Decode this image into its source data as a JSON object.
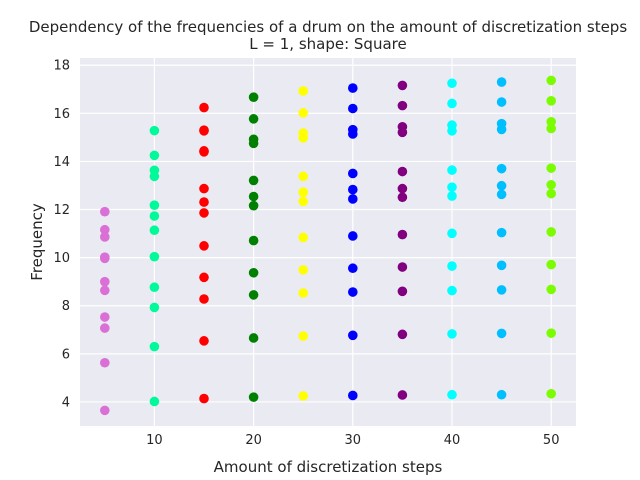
{
  "chart_data": {
    "type": "scatter",
    "title": "Dependency of the frequencies of a drum on the amount of discretization steps",
    "subtitle": "L = 1, shape: Square",
    "xlabel": "Amount of discretization steps",
    "ylabel": "Frequency",
    "xlim": [
      2.5,
      52.5
    ],
    "ylim": [
      3.0,
      18.3
    ],
    "xticks": [
      10,
      20,
      30,
      40,
      50
    ],
    "yticks": [
      4,
      6,
      8,
      10,
      12,
      14,
      16,
      18
    ],
    "grid": true,
    "background": "#eaeaf2",
    "series": [
      {
        "x": 5,
        "color": "#da70d6",
        "values": [
          3.65,
          5.63,
          7.07,
          7.53,
          8.64,
          9.0,
          9.97,
          10.02,
          10.86,
          11.16,
          11.91
        ]
      },
      {
        "x": 10,
        "color": "#00fa9a",
        "values": [
          4.02,
          6.3,
          7.93,
          8.77,
          10.04,
          11.14,
          11.73,
          12.18,
          13.38,
          13.63,
          14.25,
          15.28
        ]
      },
      {
        "x": 15,
        "color": "#ff0000",
        "values": [
          4.14,
          6.54,
          8.28,
          9.18,
          10.49,
          11.86,
          12.31,
          12.87,
          14.4,
          14.44,
          15.27,
          15.3,
          16.24
        ]
      },
      {
        "x": 20,
        "color": "#008000",
        "values": [
          4.2,
          6.66,
          8.45,
          9.37,
          10.71,
          12.16,
          12.54,
          13.21,
          14.75,
          14.92,
          15.77,
          16.67
        ]
      },
      {
        "x": 25,
        "color": "#ffff00",
        "values": [
          4.25,
          6.74,
          8.53,
          9.49,
          10.84,
          12.34,
          12.72,
          13.38,
          14.98,
          15.18,
          16.02,
          16.93
        ]
      },
      {
        "x": 30,
        "color": "#0000ff",
        "values": [
          4.27,
          6.77,
          8.57,
          9.56,
          10.9,
          12.44,
          12.83,
          13.5,
          15.14,
          15.32,
          16.2,
          17.05
        ]
      },
      {
        "x": 35,
        "color": "#800080",
        "values": [
          4.29,
          6.81,
          8.6,
          9.61,
          10.96,
          12.51,
          12.87,
          13.58,
          15.21,
          15.44,
          16.32,
          17.16
        ]
      },
      {
        "x": 40,
        "color": "#00ffff",
        "values": [
          4.3,
          6.83,
          8.63,
          9.65,
          11.01,
          12.56,
          12.93,
          13.64,
          15.27,
          15.51,
          16.41,
          17.25
        ]
      },
      {
        "x": 45,
        "color": "#00bfff",
        "values": [
          4.3,
          6.85,
          8.66,
          9.68,
          11.04,
          12.63,
          12.99,
          13.7,
          15.33,
          15.57,
          16.47,
          17.3
        ]
      },
      {
        "x": 50,
        "color": "#7cfc00",
        "values": [
          4.34,
          6.86,
          8.68,
          9.71,
          11.07,
          12.66,
          13.03,
          13.72,
          15.37,
          15.65,
          16.52,
          17.37
        ]
      }
    ]
  }
}
